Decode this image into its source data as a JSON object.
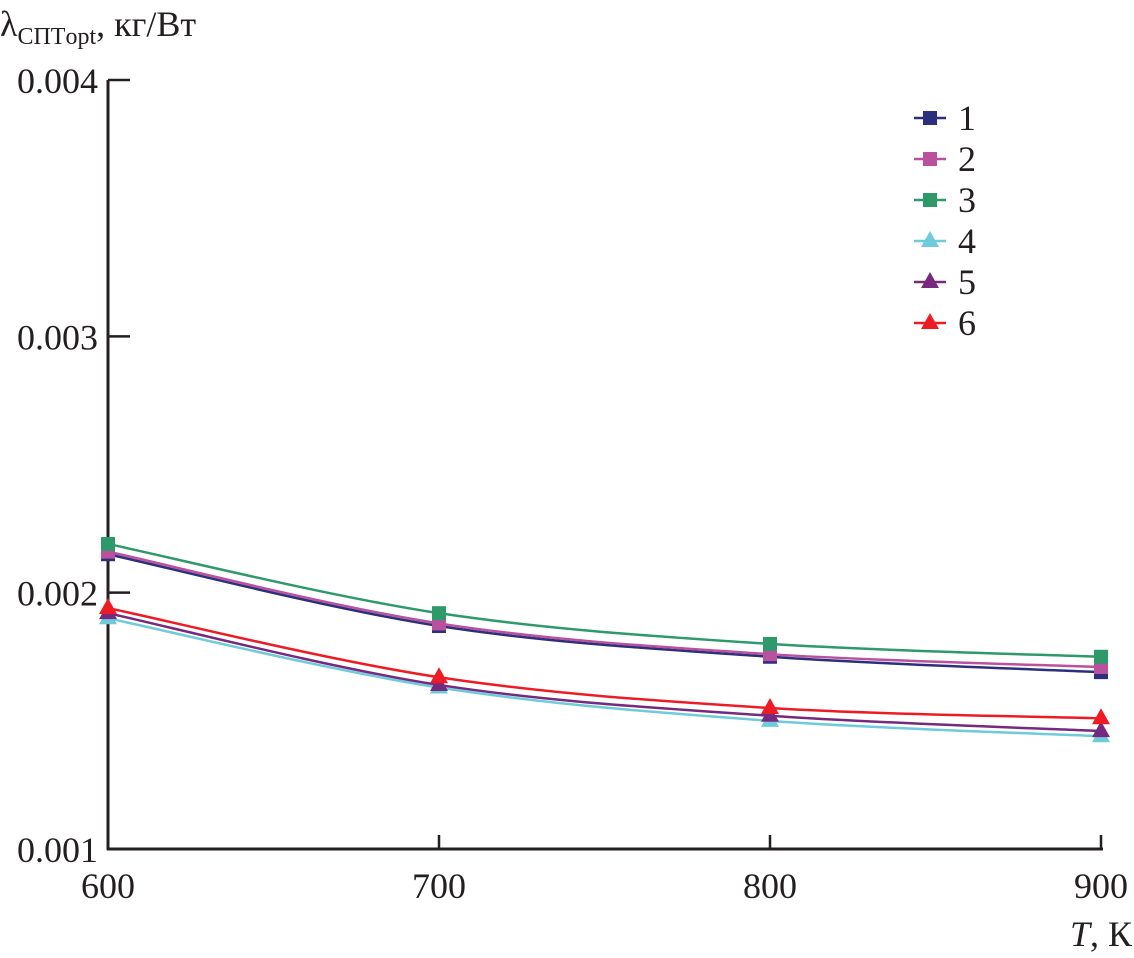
{
  "chart_data": {
    "type": "line",
    "title": "",
    "ylabel_symbol": "λ",
    "ylabel_sub": "СПТopt",
    "ylabel_units": ", кг/Вт",
    "xlabel_var": "T",
    "xlabel_units": ", К",
    "x": [
      600,
      700,
      800,
      900
    ],
    "xlim": [
      600,
      900
    ],
    "ylim": [
      0.001,
      0.004
    ],
    "xticks": [
      "600",
      "700",
      "800",
      "900"
    ],
    "yticks": [
      "0.001",
      "0.002",
      "0.003",
      "0.004"
    ],
    "ytick_values": [
      0.001,
      0.002,
      0.003,
      0.004
    ],
    "grid": false,
    "legend_position": "top-right",
    "series": [
      {
        "name": "1",
        "marker": "square",
        "color": "#2b2f7c",
        "values": [
          0.00215,
          0.00187,
          0.00175,
          0.00169
        ]
      },
      {
        "name": "2",
        "marker": "square",
        "color": "#b9519f",
        "values": [
          0.00216,
          0.00188,
          0.00176,
          0.00171
        ]
      },
      {
        "name": "3",
        "marker": "square",
        "color": "#2e9a6b",
        "values": [
          0.00219,
          0.00192,
          0.0018,
          0.00175
        ]
      },
      {
        "name": "4",
        "marker": "triangle",
        "color": "#6fcbdc",
        "values": [
          0.0019,
          0.00163,
          0.0015,
          0.00144
        ]
      },
      {
        "name": "5",
        "marker": "triangle",
        "color": "#752a7e",
        "values": [
          0.00192,
          0.00164,
          0.00152,
          0.00146
        ]
      },
      {
        "name": "6",
        "marker": "triangle",
        "color": "#ed1c24",
        "values": [
          0.00194,
          0.00167,
          0.00155,
          0.00151
        ]
      }
    ]
  }
}
